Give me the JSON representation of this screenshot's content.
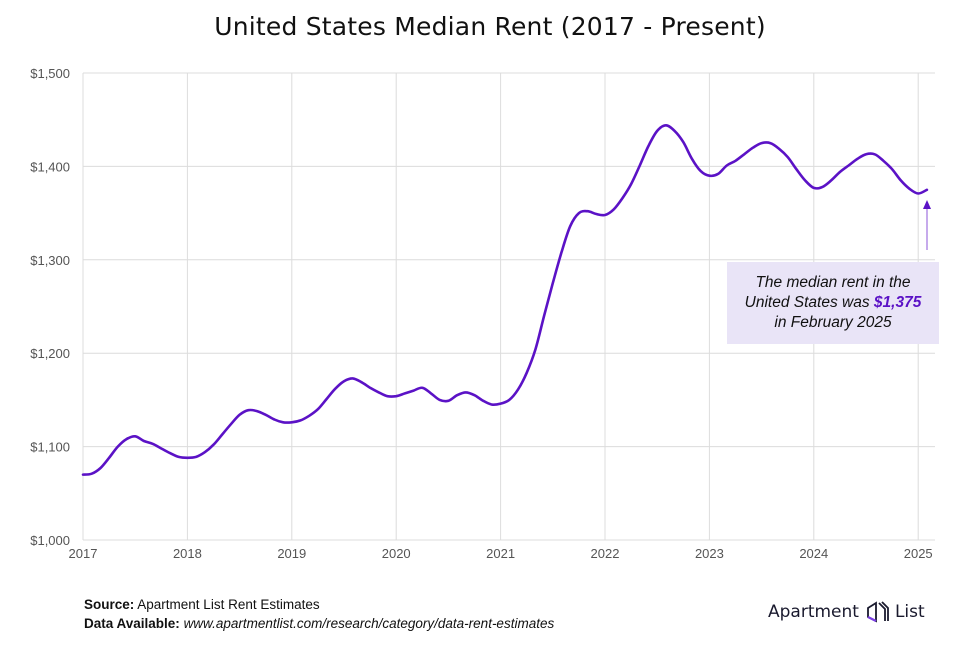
{
  "chart_data": {
    "type": "line",
    "title": "United States Median Rent (2017 - Present)",
    "xlabel": "",
    "ylabel": "",
    "x_ticks": [
      "2017",
      "2018",
      "2019",
      "2020",
      "2021",
      "2022",
      "2023",
      "2024",
      "2025"
    ],
    "y_ticks": [
      "$1,000",
      "$1,100",
      "$1,200",
      "$1,300",
      "$1,400",
      "$1,500"
    ],
    "ylim": [
      1000,
      1500
    ],
    "xlim": [
      "2017-01",
      "2025-02"
    ],
    "grid": true,
    "line_color": "#5b12c6",
    "series": [
      {
        "x": [
          "2017-01",
          "2017-02",
          "2017-03",
          "2017-04",
          "2017-05",
          "2017-06",
          "2017-07",
          "2017-08",
          "2017-09",
          "2017-10",
          "2017-11",
          "2017-12",
          "2018-01",
          "2018-02",
          "2018-03",
          "2018-04",
          "2018-05",
          "2018-06",
          "2018-07",
          "2018-08",
          "2018-09",
          "2018-10",
          "2018-11",
          "2018-12",
          "2019-01",
          "2019-02",
          "2019-03",
          "2019-04",
          "2019-05",
          "2019-06",
          "2019-07",
          "2019-08",
          "2019-09",
          "2019-10",
          "2019-11",
          "2019-12",
          "2020-01",
          "2020-02",
          "2020-03",
          "2020-04",
          "2020-05",
          "2020-06",
          "2020-07",
          "2020-08",
          "2020-09",
          "2020-10",
          "2020-11",
          "2020-12",
          "2021-01",
          "2021-02",
          "2021-03",
          "2021-04",
          "2021-05",
          "2021-06",
          "2021-07",
          "2021-08",
          "2021-09",
          "2021-10",
          "2021-11",
          "2021-12",
          "2022-01",
          "2022-02",
          "2022-03",
          "2022-04",
          "2022-05",
          "2022-06",
          "2022-07",
          "2022-08",
          "2022-09",
          "2022-10",
          "2022-11",
          "2022-12",
          "2023-01",
          "2023-02",
          "2023-03",
          "2023-04",
          "2023-05",
          "2023-06",
          "2023-07",
          "2023-08",
          "2023-09",
          "2023-10",
          "2023-11",
          "2023-12",
          "2024-01",
          "2024-02",
          "2024-03",
          "2024-04",
          "2024-05",
          "2024-06",
          "2024-07",
          "2024-08",
          "2024-09",
          "2024-10",
          "2024-11",
          "2024-12",
          "2025-01",
          "2025-02"
        ],
        "values": [
          1070,
          1071,
          1077,
          1088,
          1100,
          1108,
          1111,
          1106,
          1103,
          1098,
          1093,
          1089,
          1088,
          1089,
          1094,
          1102,
          1113,
          1124,
          1134,
          1139,
          1138,
          1134,
          1129,
          1126,
          1126,
          1128,
          1133,
          1140,
          1151,
          1162,
          1170,
          1173,
          1169,
          1163,
          1158,
          1154,
          1154,
          1157,
          1160,
          1163,
          1157,
          1150,
          1149,
          1155,
          1158,
          1155,
          1149,
          1145,
          1146,
          1150,
          1161,
          1179,
          1204,
          1240,
          1275,
          1308,
          1336,
          1350,
          1352,
          1349,
          1348,
          1354,
          1366,
          1381,
          1401,
          1422,
          1438,
          1444,
          1438,
          1426,
          1408,
          1395,
          1390,
          1392,
          1401,
          1406,
          1413,
          1420,
          1425,
          1425,
          1419,
          1410,
          1397,
          1385,
          1377,
          1378,
          1385,
          1394,
          1401,
          1408,
          1413,
          1413,
          1406,
          1397,
          1385,
          1376,
          1371,
          1375
        ]
      }
    ],
    "annotation": {
      "line1": "The median rent in the",
      "line2_pre": "United States was ",
      "highlight": "$1,375",
      "line3": "in February 2025",
      "highlight_color": "#5b12c6",
      "box_color": "#e9e4f7"
    }
  },
  "footer": {
    "source_label": "Source:",
    "source_text": "Apartment List Rent Estimates",
    "data_label": "Data Available:",
    "data_url": "www.apartmentlist.com/research/category/data-rent-estimates"
  },
  "logo": {
    "left": "Apartment",
    "right": "List"
  }
}
